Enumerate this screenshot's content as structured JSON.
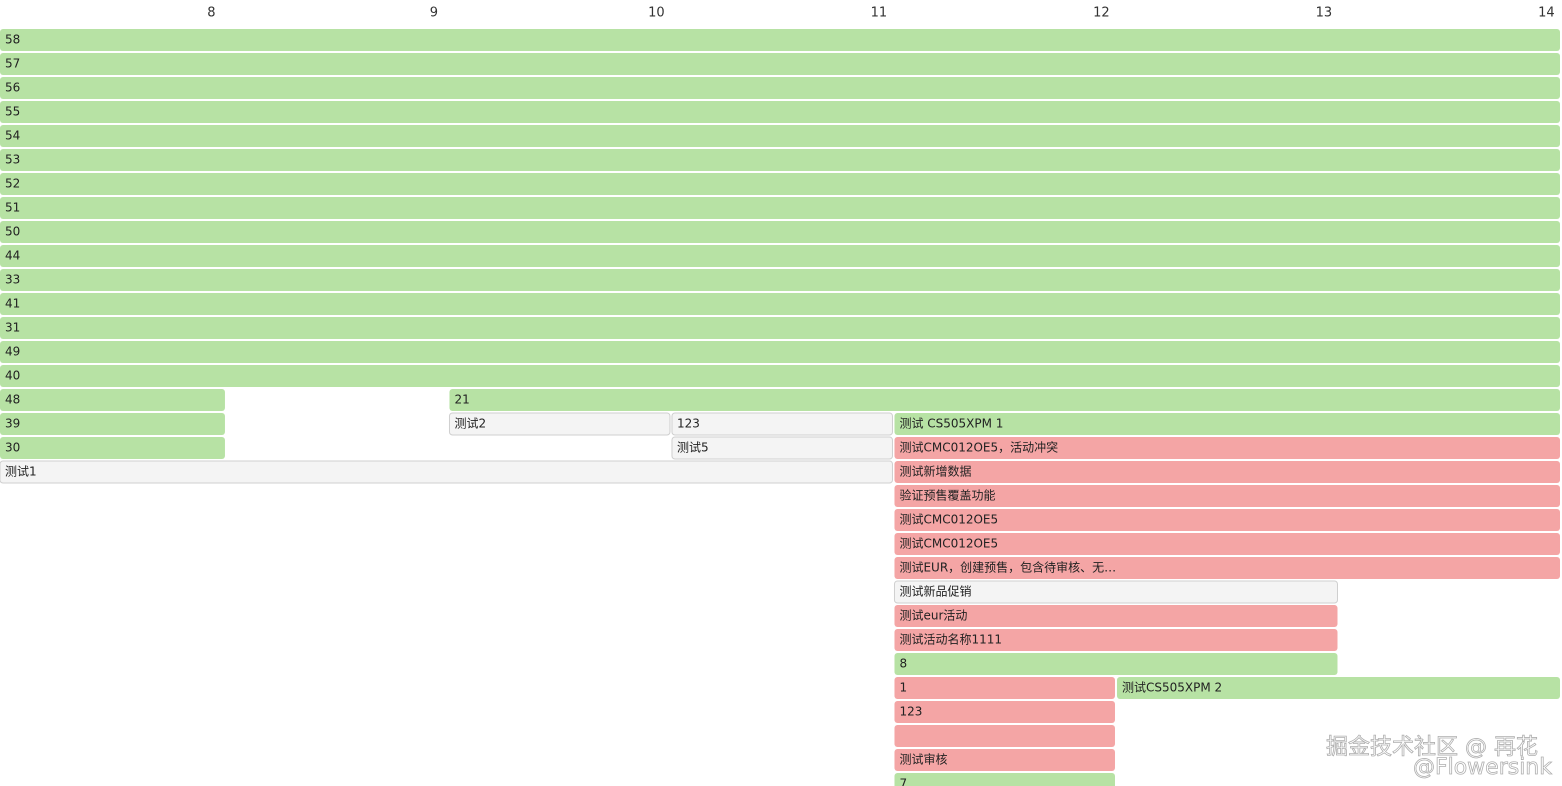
{
  "chart_data": {
    "type": "gantt",
    "xlim": [
      7.05,
      14.07
    ],
    "xticks": [
      8,
      9,
      10,
      11,
      12,
      13,
      14
    ],
    "rows": [
      {
        "tasks": [
          {
            "label": "58",
            "start": 7.05,
            "end": 14.07,
            "color": "#b7e2a4"
          }
        ]
      },
      {
        "tasks": [
          {
            "label": "57",
            "start": 7.05,
            "end": 14.07,
            "color": "#b7e2a4"
          }
        ]
      },
      {
        "tasks": [
          {
            "label": "56",
            "start": 7.05,
            "end": 14.07,
            "color": "#b7e2a4"
          }
        ]
      },
      {
        "tasks": [
          {
            "label": "55",
            "start": 7.05,
            "end": 14.07,
            "color": "#b7e2a4"
          }
        ]
      },
      {
        "tasks": [
          {
            "label": "54",
            "start": 7.05,
            "end": 14.07,
            "color": "#b7e2a4"
          }
        ]
      },
      {
        "tasks": [
          {
            "label": "53",
            "start": 7.05,
            "end": 14.07,
            "color": "#b7e2a4"
          }
        ]
      },
      {
        "tasks": [
          {
            "label": "52",
            "start": 7.05,
            "end": 14.07,
            "color": "#b7e2a4"
          }
        ]
      },
      {
        "tasks": [
          {
            "label": "51",
            "start": 7.05,
            "end": 14.07,
            "color": "#b7e2a4"
          }
        ]
      },
      {
        "tasks": [
          {
            "label": "50",
            "start": 7.05,
            "end": 14.07,
            "color": "#b7e2a4"
          }
        ]
      },
      {
        "tasks": [
          {
            "label": "44",
            "start": 7.05,
            "end": 14.07,
            "color": "#b7e2a4"
          }
        ]
      },
      {
        "tasks": [
          {
            "label": "33",
            "start": 7.05,
            "end": 14.07,
            "color": "#b7e2a4"
          }
        ]
      },
      {
        "tasks": [
          {
            "label": "41",
            "start": 7.05,
            "end": 14.07,
            "color": "#b7e2a4"
          }
        ]
      },
      {
        "tasks": [
          {
            "label": "31",
            "start": 7.05,
            "end": 14.07,
            "color": "#b7e2a4"
          }
        ]
      },
      {
        "tasks": [
          {
            "label": "49",
            "start": 7.05,
            "end": 14.07,
            "color": "#b7e2a4"
          }
        ]
      },
      {
        "tasks": [
          {
            "label": "40",
            "start": 7.05,
            "end": 14.07,
            "color": "#b7e2a4"
          }
        ]
      },
      {
        "tasks": [
          {
            "label": "48",
            "start": 7.05,
            "end": 8.07,
            "color": "#b7e2a4"
          },
          {
            "label": "21",
            "start": 9.07,
            "end": 14.07,
            "color": "#b7e2a4"
          }
        ]
      },
      {
        "tasks": [
          {
            "label": "39",
            "start": 7.05,
            "end": 8.07,
            "color": "#b7e2a4"
          },
          {
            "label": "测试2",
            "start": 9.07,
            "end": 10.07,
            "color": "#f4f4f4"
          },
          {
            "label": "123",
            "start": 10.07,
            "end": 11.07,
            "color": "#f4f4f4"
          },
          {
            "label": "测试 CS505XPM 1",
            "start": 11.07,
            "end": 14.07,
            "color": "#b7e2a4"
          }
        ]
      },
      {
        "tasks": [
          {
            "label": "30",
            "start": 7.05,
            "end": 8.07,
            "color": "#b7e2a4"
          },
          {
            "label": "测试5",
            "start": 10.07,
            "end": 11.07,
            "color": "#f4f4f4"
          },
          {
            "label": "测试CMC012OE5，活动冲突",
            "start": 11.07,
            "end": 14.07,
            "color": "#f4a5a5"
          }
        ]
      },
      {
        "tasks": [
          {
            "label": "测试1",
            "start": 7.05,
            "end": 11.07,
            "color": "#f4f4f4"
          },
          {
            "label": "测试新增数据",
            "start": 11.07,
            "end": 14.07,
            "color": "#f4a5a5"
          }
        ]
      },
      {
        "tasks": [
          {
            "label": "验证预售覆盖功能",
            "start": 11.07,
            "end": 14.07,
            "color": "#f4a5a5"
          }
        ]
      },
      {
        "tasks": [
          {
            "label": "测试CMC012OE5",
            "start": 11.07,
            "end": 14.07,
            "color": "#f4a5a5"
          }
        ]
      },
      {
        "tasks": [
          {
            "label": "测试CMC012OE5",
            "start": 11.07,
            "end": 14.07,
            "color": "#f4a5a5"
          }
        ]
      },
      {
        "tasks": [
          {
            "label": "测试EUR，创建预售，包含待审核、无…",
            "start": 11.07,
            "end": 14.07,
            "color": "#f4a5a5"
          }
        ]
      },
      {
        "tasks": [
          {
            "label": "测试新品促销",
            "start": 11.07,
            "end": 13.07,
            "color": "#f4f4f4"
          }
        ]
      },
      {
        "tasks": [
          {
            "label": "测试eur活动",
            "start": 11.07,
            "end": 13.07,
            "color": "#f4a5a5"
          }
        ]
      },
      {
        "tasks": [
          {
            "label": "测试活动名称1111",
            "start": 11.07,
            "end": 13.07,
            "color": "#f4a5a5"
          }
        ]
      },
      {
        "tasks": [
          {
            "label": "8",
            "start": 11.07,
            "end": 13.07,
            "color": "#b7e2a4"
          }
        ]
      },
      {
        "tasks": [
          {
            "label": "1",
            "start": 11.07,
            "end": 12.07,
            "color": "#f4a5a5"
          },
          {
            "label": "测试CS505XPM 2",
            "start": 12.07,
            "end": 14.07,
            "color": "#b7e2a4"
          }
        ]
      },
      {
        "tasks": [
          {
            "label": "123",
            "start": 11.07,
            "end": 12.07,
            "color": "#f4a5a5"
          }
        ]
      },
      {
        "tasks": [
          {
            "start": 11.07,
            "end": 12.07,
            "color": "#f4a5a5"
          }
        ]
      },
      {
        "tasks": [
          {
            "label": "测试审核",
            "start": 11.07,
            "end": 12.07,
            "color": "#f4a5a5"
          }
        ]
      },
      {
        "tasks": [
          {
            "label": "7",
            "start": 11.07,
            "end": 12.07,
            "color": "#b7e2a4"
          }
        ]
      }
    ],
    "watermark": [
      "掘金技术社区 @ 再花",
      "@Flowersink"
    ]
  }
}
